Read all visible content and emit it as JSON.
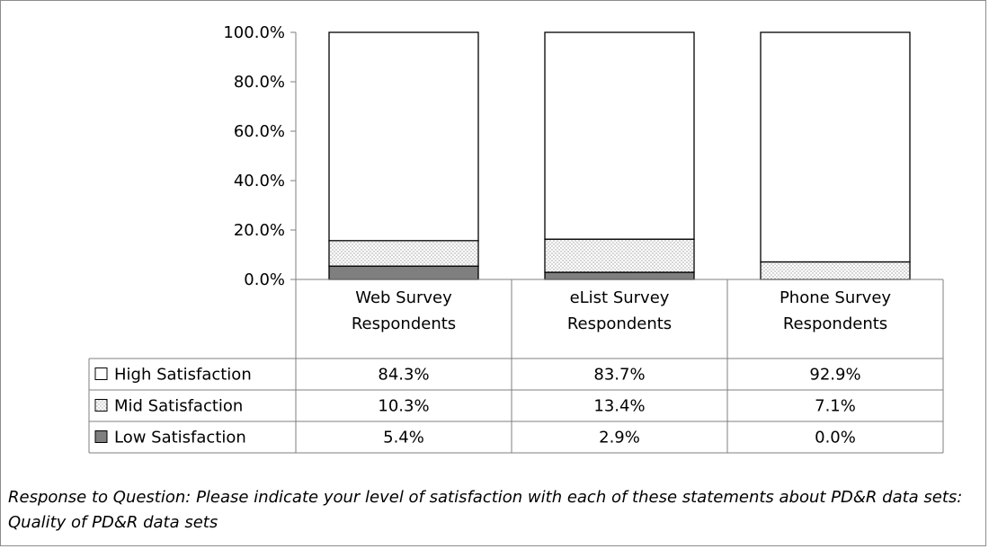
{
  "chart_data": {
    "type": "bar",
    "stacked": true,
    "categories": [
      "Web Survey Respondents",
      "eList Survey Respondents",
      "Phone Survey Respondents"
    ],
    "category_lines": [
      [
        "Web Survey",
        "Respondents"
      ],
      [
        "eList Survey",
        "Respondents"
      ],
      [
        "Phone Survey",
        "Respondents"
      ]
    ],
    "series": [
      {
        "name": "High Satisfaction",
        "values": [
          84.3,
          83.7,
          92.9
        ],
        "labels": [
          "84.3%",
          "83.7%",
          "92.9%"
        ],
        "fill": "#ffffff"
      },
      {
        "name": "Mid Satisfaction",
        "values": [
          10.3,
          13.4,
          7.1
        ],
        "labels": [
          "10.3%",
          "13.4%",
          "7.1%"
        ],
        "fill": "dotted"
      },
      {
        "name": "Low Satisfaction",
        "values": [
          5.4,
          2.9,
          0.0
        ],
        "labels": [
          "5.4%",
          "2.9%",
          "0.0%"
        ],
        "fill": "#7f7f7f"
      }
    ],
    "ylim": [
      0,
      100
    ],
    "yticks": [
      "0.0%",
      "20.0%",
      "40.0%",
      "60.0%",
      "80.0%",
      "100.0%"
    ],
    "grid": false,
    "legend": "data-table"
  },
  "caption": "Response to Question: Please indicate your level of satisfaction with each of these statements about PD&R data sets: Quality of PD&R data sets",
  "colors": {
    "frame": "#8c8c8c",
    "axis": "#7f7f7f",
    "low_fill": "#7f7f7f",
    "dot": "#9a9a9a"
  }
}
